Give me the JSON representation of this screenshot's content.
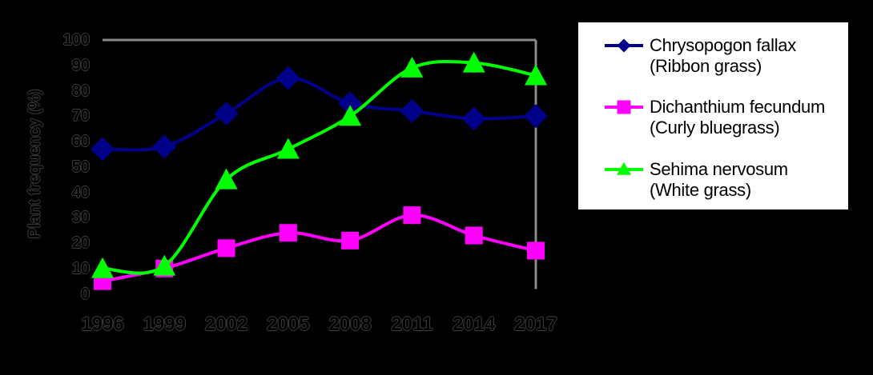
{
  "chart_data": {
    "type": "line",
    "smoothed": true,
    "title": "",
    "xlabel": "",
    "ylabel": "Plant frequency (%)",
    "categories": [
      "1996",
      "1999",
      "2002",
      "2005",
      "2008",
      "2011",
      "2014",
      "2017"
    ],
    "y_ticks": [
      0,
      10,
      20,
      30,
      40,
      50,
      60,
      70,
      80,
      90,
      100
    ],
    "ylim": [
      0,
      100
    ],
    "grid": false,
    "legend_position": "right",
    "plot_border": {
      "sides": [
        "top",
        "right"
      ],
      "color": "#8a8a8a"
    },
    "background_color": "#000000",
    "series": [
      {
        "name": "Chrysopogon fallax (Ribbon grass)",
        "marker": "diamond",
        "color": "#00008B",
        "values": [
          57,
          58,
          71,
          85,
          75,
          72,
          69,
          70
        ]
      },
      {
        "name": "Dichanthium fecundum (Curly bluegrass)",
        "marker": "square",
        "color": "#FF00FF",
        "values": [
          5,
          10,
          18,
          24,
          21,
          31,
          23,
          17
        ]
      },
      {
        "name": "Sehima nervosum (White grass)",
        "marker": "triangle",
        "color": "#00FF00",
        "values": [
          10,
          11,
          45,
          57,
          70,
          89,
          91,
          86
        ]
      }
    ]
  },
  "legend": {
    "background": "#FFFFFF",
    "items": [
      {
        "line1": "Chrysopogon fallax",
        "line2": "(Ribbon grass)",
        "marker": "diamond",
        "color": "#00008B"
      },
      {
        "line1": "Dichanthium fecundum",
        "line2": "(Curly bluegrass)",
        "marker": "square",
        "color": "#FF00FF"
      },
      {
        "line1": "Sehima nervosum",
        "line2": "(White grass)",
        "marker": "triangle",
        "color": "#00FF00"
      }
    ]
  }
}
